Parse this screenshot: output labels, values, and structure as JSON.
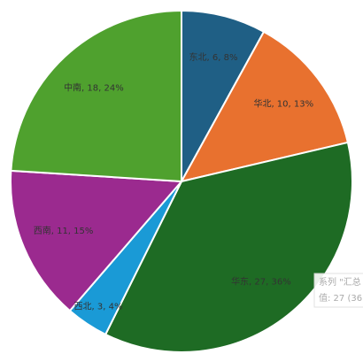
{
  "chart_data": {
    "type": "pie",
    "categories": [
      "东北",
      "华北",
      "华东",
      "西北",
      "西南",
      "中南"
    ],
    "values": [
      6,
      10,
      27,
      3,
      11,
      18
    ],
    "value_labels": [
      "东北, 6, 8%",
      "华北, 10, 13%",
      "华东, 27, 36%",
      "西北, 3, 4%",
      "西南, 11, 15%",
      "中南, 18, 24%"
    ],
    "colors": [
      "#1f5f85",
      "#e8712f",
      "#1e6b24",
      "#1a9ad6",
      "#9b2a8f",
      "#4fa12e"
    ],
    "tooltip": [
      "系列 \"汇总",
      "值: 27 (36"
    ]
  }
}
